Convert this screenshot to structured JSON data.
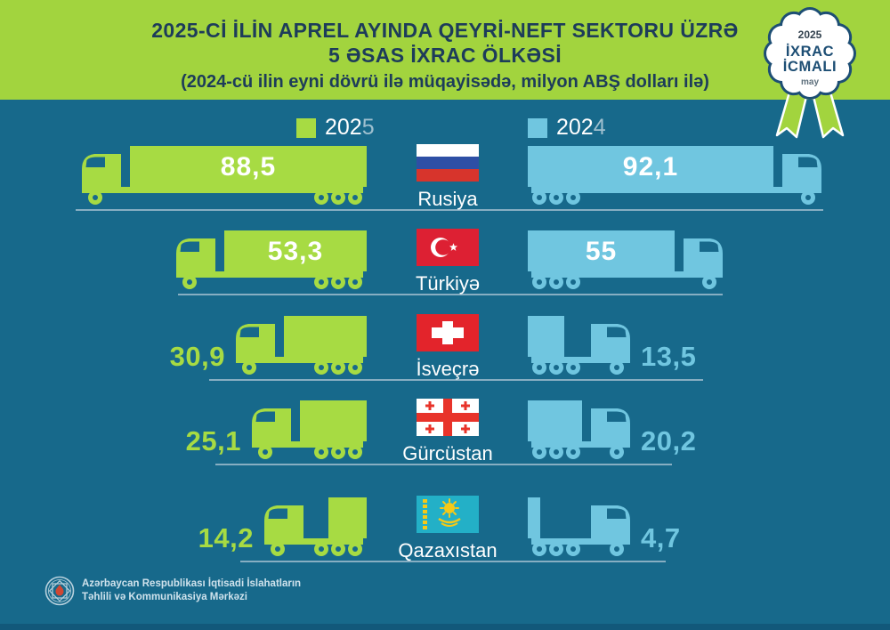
{
  "header": {
    "title_line1": "2025-Cİ İLİN APREL AYINDA QEYRİ-NEFT SEKTORU ÜZRƏ",
    "title_line2": "5 ƏSAS İXRAC ÖLKƏSİ",
    "subtitle": "(2024-cü ilin eyni dövrü ilə müqayisədə, milyon ABŞ dolları ilə)"
  },
  "badge": {
    "year": "2025",
    "title_line1": "İXRAC",
    "title_line2": "İCMALI",
    "month": "may"
  },
  "legend": {
    "items": [
      {
        "label": "2025",
        "color": "#a7db43"
      },
      {
        "label": "2024",
        "color": "#70c6e0"
      }
    ]
  },
  "chart_data": {
    "type": "bar",
    "title": "2025-ci ilin aprel ayında qeyri-neft sektoru üzrə 5 əsas ixrac ölkəsi",
    "subtitle": "2024-cü ilin eyni dövrü ilə müqayisədə",
    "unit": "milyon ABŞ dolları",
    "orientation": "horizontal-paired",
    "legend_position": "top",
    "categories": [
      "Rusiya",
      "Türkiyə",
      "İsveçrə",
      "Gürcüstan",
      "Qazaxıstan"
    ],
    "flags": [
      "russia",
      "turkiye",
      "isvecre",
      "gurcustan",
      "qazaxistan"
    ],
    "series": [
      {
        "name": "2025",
        "color": "#a7db43",
        "values": [
          88.5,
          53.3,
          30.9,
          25.1,
          14.2
        ],
        "labels": [
          "88,5",
          "53,3",
          "30,9",
          "25,1",
          "14,2"
        ]
      },
      {
        "name": "2024",
        "color": "#70c6e0",
        "values": [
          92.1,
          55,
          13.5,
          20.2,
          4.7
        ],
        "labels": [
          "92,1",
          "55",
          "13,5",
          "20,2",
          "4,7"
        ]
      }
    ]
  },
  "footer": {
    "org_line1": "Azərbaycan Respublikası İqtisadi İslahatların",
    "org_line2": "Təhlili və Kommunikasiya Mərkəzi"
  },
  "colors": {
    "background": "#17698b",
    "header_bg": "#a2d43e",
    "title": "#1d3c5a",
    "green_2025": "#a7db43",
    "blue_2024": "#70c6e0",
    "road": "#87aec2",
    "badge_navy": "#1d4e74",
    "value_text_inside": "#ffffff"
  }
}
